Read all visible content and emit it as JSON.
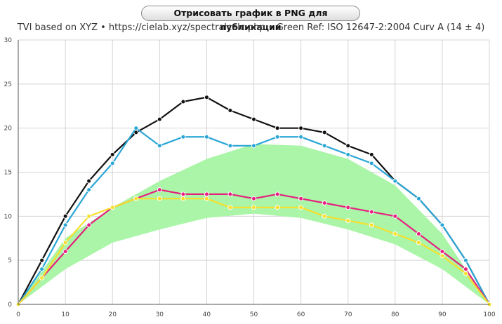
{
  "toolbar": {
    "export_label": "Отрисовать график в PNG для публикации"
  },
  "header": {
    "subtitle": "TVI based on XYZ  •  https://cielab.xyz/spectralcalc.php  •  Green Ref: ISO 12647-2:2004 Curv A (14 ± 4)"
  },
  "colors": {
    "reference_band": "#aaf5a7",
    "black": "#111111",
    "cyan": "#2aa6d6",
    "magenta": "#e5207f",
    "yellow": "#f6df2d",
    "grid": "#d4d4d4"
  },
  "chart_data": {
    "type": "line",
    "xlim": [
      0,
      100
    ],
    "ylim": [
      0,
      30
    ],
    "x_ticks": [
      0,
      10,
      20,
      30,
      40,
      50,
      60,
      70,
      80,
      90,
      100
    ],
    "y_ticks": [
      0,
      5,
      10,
      15,
      20,
      25,
      30
    ],
    "grid": true,
    "reference_band": {
      "x": [
        0,
        10,
        20,
        30,
        40,
        50,
        60,
        70,
        80,
        90,
        100
      ],
      "lower": [
        0,
        4,
        7,
        8.5,
        9.8,
        10.3,
        9.8,
        8.5,
        6.8,
        4,
        0
      ],
      "upper": [
        0,
        7.5,
        11,
        14,
        16.5,
        18.2,
        18,
        16.5,
        13.5,
        8,
        0
      ]
    },
    "series": [
      {
        "color": "#111111",
        "x": [
          0,
          5,
          10,
          15,
          20,
          25,
          30,
          35,
          40,
          45,
          50,
          55,
          60,
          65,
          70,
          75,
          80,
          85,
          90,
          95,
          100
        ],
        "values": [
          0,
          5,
          10,
          14,
          17,
          19.5,
          21,
          23,
          23.5,
          22,
          21,
          20,
          20,
          19.5,
          18,
          17,
          14,
          12,
          9,
          5,
          0
        ]
      },
      {
        "color": "#2aa6d6",
        "x": [
          0,
          5,
          10,
          15,
          20,
          25,
          30,
          35,
          40,
          45,
          50,
          55,
          60,
          65,
          70,
          75,
          80,
          85,
          90,
          95,
          100
        ],
        "values": [
          0,
          4,
          9,
          13,
          16,
          20,
          18,
          19,
          19,
          18,
          18,
          19,
          19,
          18,
          17,
          16,
          14,
          12,
          9,
          5,
          0
        ]
      },
      {
        "color": "#e5207f",
        "x": [
          0,
          5,
          10,
          15,
          20,
          25,
          30,
          35,
          40,
          45,
          50,
          55,
          60,
          65,
          70,
          75,
          80,
          85,
          90,
          95,
          100
        ],
        "values": [
          0,
          3,
          6,
          9,
          11,
          12,
          13,
          12.5,
          12.5,
          12.5,
          12,
          12.5,
          12,
          11.5,
          11,
          10.5,
          10,
          8,
          6,
          4,
          0
        ]
      },
      {
        "color": "#f6df2d",
        "x": [
          0,
          5,
          10,
          15,
          20,
          25,
          30,
          35,
          40,
          45,
          50,
          55,
          60,
          65,
          70,
          75,
          80,
          85,
          90,
          95,
          100
        ],
        "values": [
          0,
          3,
          7,
          10,
          11,
          12,
          12,
          12,
          12,
          11,
          11,
          11,
          11,
          10,
          9.5,
          9,
          8,
          7,
          5.5,
          3.5,
          0
        ]
      }
    ]
  }
}
